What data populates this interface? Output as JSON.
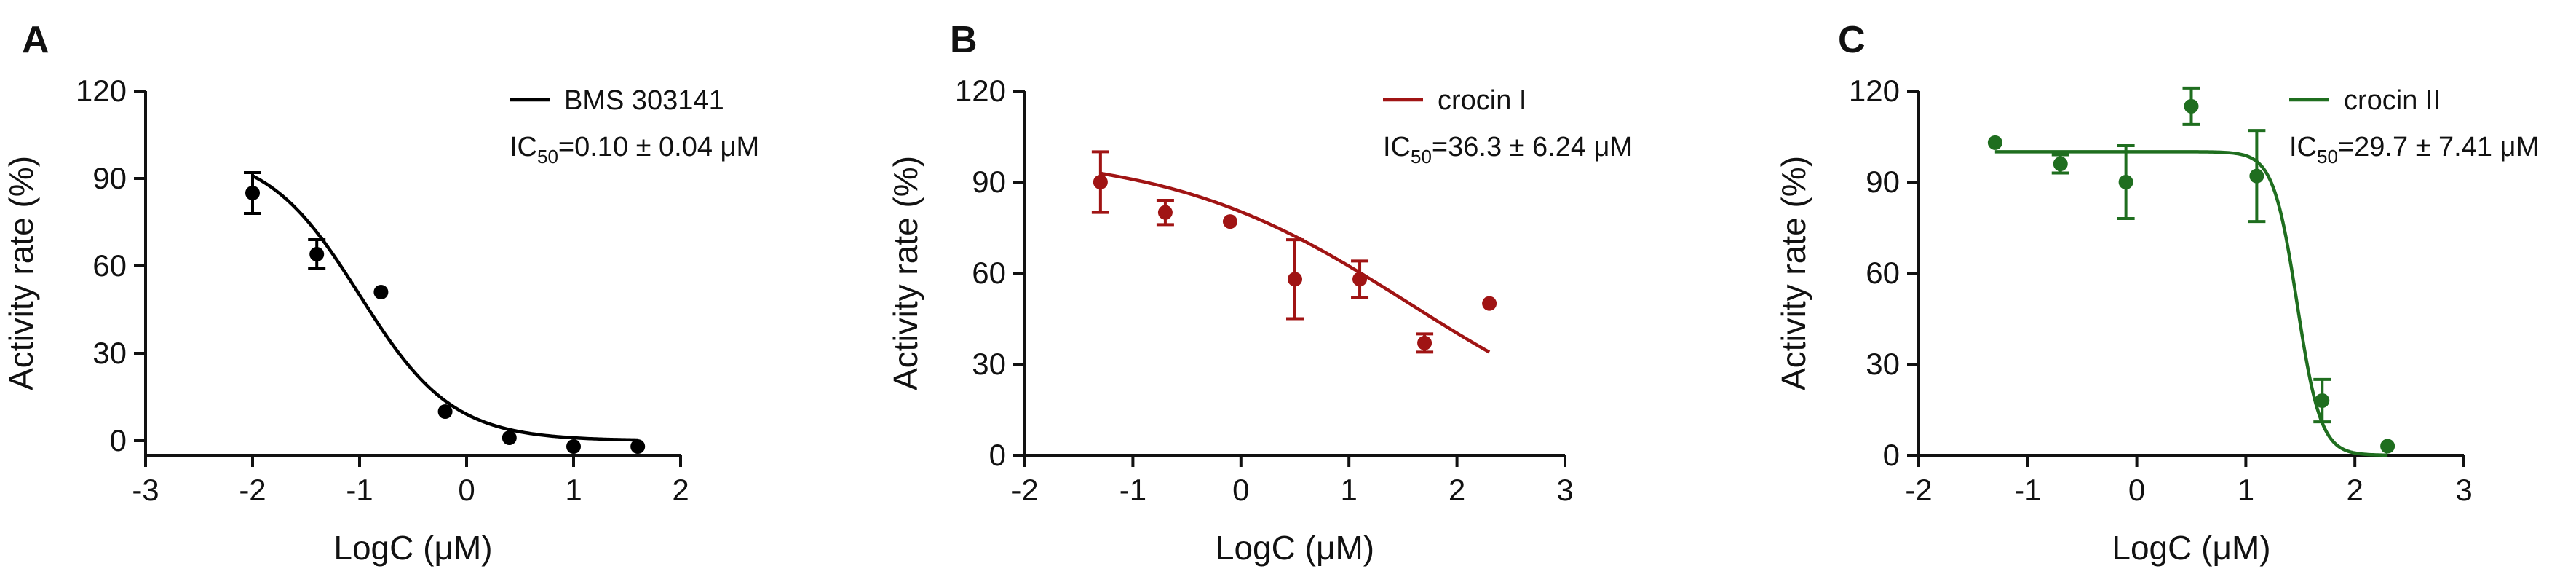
{
  "chart_data": [
    {
      "type": "scatter",
      "panel_label": "A",
      "color": "#000000",
      "xlabel": "LogC (μM)",
      "ylabel": "Activity rate (%)",
      "xlim": [
        -3,
        2
      ],
      "ylim": [
        -5,
        120
      ],
      "xticks": [
        -3,
        -2,
        -1,
        0,
        1,
        2
      ],
      "yticks": [
        0,
        30,
        60,
        90,
        120
      ],
      "xtick_labels": [
        "-3",
        "-2",
        "-1",
        "0",
        "1",
        "2"
      ],
      "ytick_labels": [
        "0",
        "30",
        "60",
        "90",
        "120"
      ],
      "legend": {
        "label": "BMS 303141",
        "ic50_prefix": "IC",
        "ic50_sub": "50",
        "ic50_value": "=0.10 ± 0.04 μM",
        "placement": "top-right"
      },
      "points": [
        {
          "x": -2.0,
          "y": 85,
          "err": 7
        },
        {
          "x": -1.4,
          "y": 64,
          "err": 5
        },
        {
          "x": -0.8,
          "y": 51,
          "err": 0
        },
        {
          "x": -0.2,
          "y": 10,
          "err": 0
        },
        {
          "x": 0.4,
          "y": 1,
          "err": 0
        },
        {
          "x": 1.0,
          "y": -2,
          "err": 0
        },
        {
          "x": 1.6,
          "y": -2,
          "err": 0
        }
      ],
      "curve": {
        "model": "four-parameter-logistic",
        "top": 100,
        "bottom": 0,
        "logIC50": -1.0,
        "hill": 1.0,
        "x_range": [
          -2.0,
          1.6
        ]
      }
    },
    {
      "type": "scatter",
      "panel_label": "B",
      "color": "#A01414",
      "xlabel": "LogC (μM)",
      "ylabel": "Activity rate (%)",
      "xlim": [
        -2,
        3
      ],
      "ylim": [
        0,
        120
      ],
      "xticks": [
        -2,
        -1,
        0,
        1,
        2,
        3
      ],
      "yticks": [
        0,
        30,
        60,
        90,
        120
      ],
      "xtick_labels": [
        "-2",
        "-1",
        "0",
        "1",
        "2",
        "3"
      ],
      "ytick_labels": [
        "0",
        "30",
        "60",
        "90",
        "120"
      ],
      "legend": {
        "label": "crocin I",
        "ic50_prefix": "IC",
        "ic50_sub": "50",
        "ic50_value": "=36.3 ± 6.24 μM",
        "placement": "top-right"
      },
      "points": [
        {
          "x": -1.3,
          "y": 90,
          "err": 10
        },
        {
          "x": -0.7,
          "y": 80,
          "err": 4
        },
        {
          "x": -0.1,
          "y": 77,
          "err": 0
        },
        {
          "x": 0.5,
          "y": 58,
          "err": 13
        },
        {
          "x": 1.1,
          "y": 58,
          "err": 6
        },
        {
          "x": 1.7,
          "y": 37,
          "err": 3
        },
        {
          "x": 2.3,
          "y": 50,
          "err": 0
        }
      ],
      "curve": {
        "model": "four-parameter-logistic",
        "top": 100,
        "bottom": 0,
        "logIC50": 1.56,
        "hill": 0.39,
        "x_range": [
          -1.3,
          2.3
        ]
      }
    },
    {
      "type": "scatter",
      "panel_label": "C",
      "color": "#1F6E1F",
      "xlabel": "LogC (μM)",
      "ylabel": "Activity rate (%)",
      "xlim": [
        -2,
        3
      ],
      "ylim": [
        0,
        120
      ],
      "xticks": [
        -2,
        -1,
        0,
        1,
        2,
        3
      ],
      "yticks": [
        0,
        30,
        60,
        90,
        120
      ],
      "xtick_labels": [
        "-2",
        "-1",
        "0",
        "1",
        "2",
        "3"
      ],
      "ytick_labels": [
        "0",
        "30",
        "60",
        "90",
        "120"
      ],
      "legend": {
        "label": "crocin II",
        "ic50_prefix": "IC",
        "ic50_sub": "50",
        "ic50_value": "=29.7 ± 7.41 μM",
        "placement": "top-right"
      },
      "points": [
        {
          "x": -1.3,
          "y": 103,
          "err": 0
        },
        {
          "x": -0.7,
          "y": 96,
          "err": 3
        },
        {
          "x": -0.1,
          "y": 90,
          "err": 12
        },
        {
          "x": 0.5,
          "y": 115,
          "err": 6
        },
        {
          "x": 1.1,
          "y": 92,
          "err": 15
        },
        {
          "x": 1.7,
          "y": 18,
          "err": 7
        },
        {
          "x": 2.3,
          "y": 3,
          "err": 0
        }
      ],
      "curve": {
        "model": "four-parameter-logistic",
        "top": 100,
        "bottom": 0,
        "logIC50": 1.47,
        "hill": 4.0,
        "x_range": [
          -1.3,
          2.3
        ]
      }
    }
  ]
}
